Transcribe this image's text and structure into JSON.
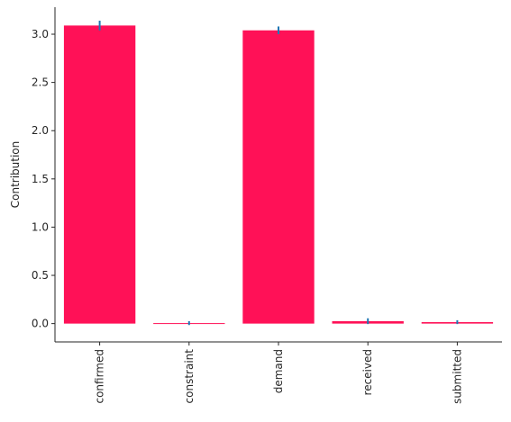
{
  "chart_data": {
    "type": "bar",
    "title": "",
    "xlabel": "",
    "ylabel": "Contribution",
    "categories": [
      "confirmed",
      "constraint",
      "demand",
      "received",
      "submitted"
    ],
    "values": [
      3.09,
      0.005,
      3.04,
      0.025,
      0.015
    ],
    "error": [
      0.05,
      0.02,
      0.04,
      0.03,
      0.02
    ],
    "ylim": [
      -0.19,
      3.28
    ],
    "yticks": [
      0.0,
      0.5,
      1.0,
      1.5,
      2.0,
      2.5,
      3.0
    ],
    "ytick_labels": [
      "0.0",
      "0.5",
      "1.0",
      "1.5",
      "2.0",
      "2.5",
      "3.0"
    ],
    "grid": false,
    "colors": {
      "bar": "#ff1157",
      "error": "#1f77b4",
      "axis": "#262626"
    }
  }
}
